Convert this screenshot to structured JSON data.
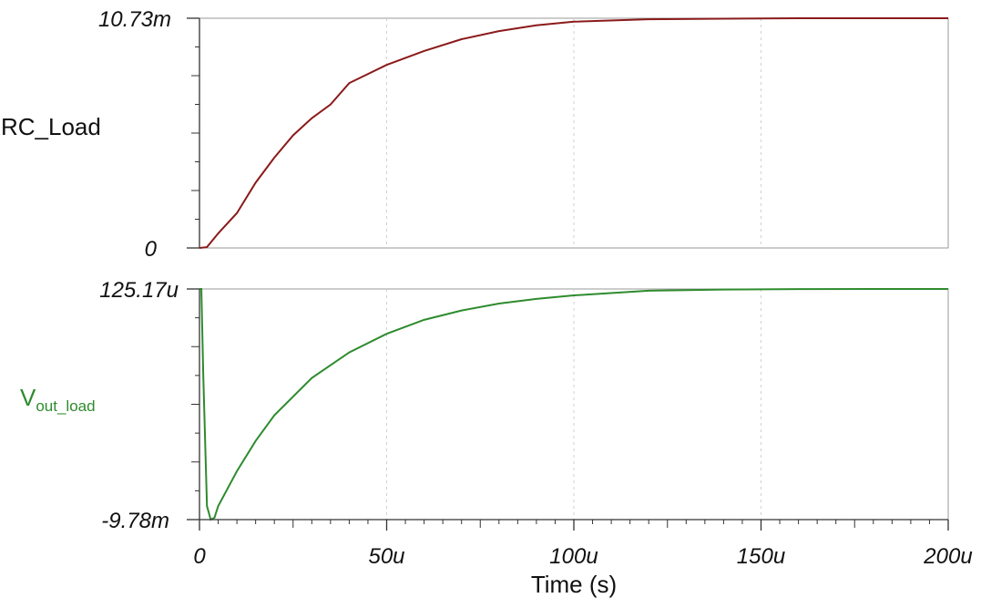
{
  "chart_data": {
    "type": "line",
    "xlabel": "Time (s)",
    "x_ticks": [
      "0",
      "50u",
      "100u",
      "150u",
      "200u"
    ],
    "xlim": [
      0,
      0.0002
    ],
    "grid": true,
    "colors": {
      "RC_Load": "#8b1a1a",
      "V_out_load": "#2e8b2e"
    },
    "panels": [
      {
        "label": "RC_Load",
        "ymax_label": "10.73m",
        "ymin_label": "0",
        "ylim": [
          0,
          0.01073
        ],
        "series": [
          {
            "name": "RC_Load",
            "x": [
              0,
              2e-06,
              5e-06,
              1e-05,
              1.5e-05,
              2e-05,
              2.5e-05,
              3e-05,
              3.5e-05,
              4e-05,
              5e-05,
              6e-05,
              7e-05,
              8e-05,
              9e-05,
              0.0001,
              0.00012,
              0.00014,
              0.00016,
              0.00018,
              0.0002
            ],
            "y": [
              0,
              4e-05,
              0.00068,
              0.00163,
              0.00305,
              0.00422,
              0.00526,
              0.00606,
              0.0067,
              0.0077,
              0.00855,
              0.0092,
              0.00975,
              0.01013,
              0.0104,
              0.01057,
              0.01068,
              0.01071,
              0.01073,
              0.01073,
              0.01073
            ]
          }
        ]
      },
      {
        "label": "V",
        "label_sub": "out_load",
        "ymax_label": "125.17u",
        "ymin_label": "-9.78m",
        "ylim": [
          -0.00978,
          0.00012517
        ],
        "series": [
          {
            "name": "V_out_load",
            "x": [
              0,
              5e-07,
              1e-06,
              2e-06,
              3e-06,
              4e-06,
              5e-06,
              1e-05,
              1.5e-05,
              2e-05,
              3e-05,
              4e-05,
              5e-05,
              6e-05,
              7e-05,
              8e-05,
              9e-05,
              0.0001,
              0.00012,
              0.00014,
              0.00016,
              0.00018,
              0.0002
            ],
            "y": [
              0.00012517,
              0.00012517,
              -0.0035,
              -0.0092,
              -0.00978,
              -0.0097,
              -0.0092,
              -0.0077,
              -0.0064,
              -0.0053,
              -0.0037,
              -0.0026,
              -0.0018,
              -0.0012,
              -0.0008,
              -0.0005,
              -0.0003,
              -0.00015,
              5e-05,
              0.0001,
              0.00012,
              0.000125,
              0.00012517
            ]
          }
        ]
      }
    ]
  }
}
